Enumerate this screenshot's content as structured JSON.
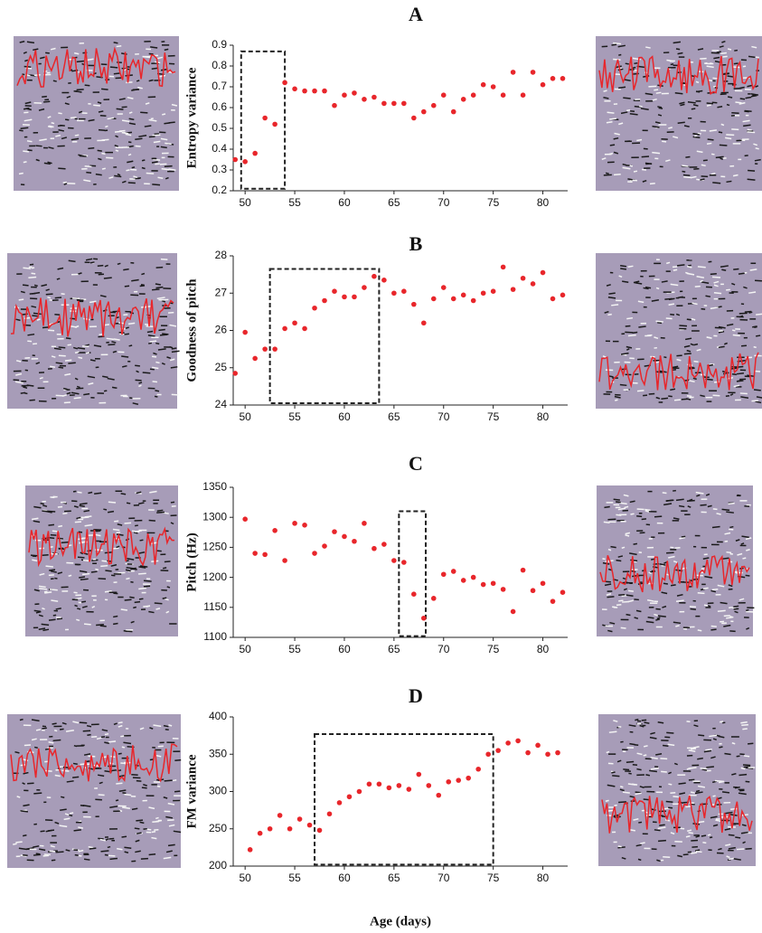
{
  "chart_data": [
    {
      "type": "scatter",
      "title": "A",
      "ylabel": "Entropy variance",
      "color": "#e8262b",
      "x": [
        49,
        50,
        51,
        52,
        53,
        54,
        55,
        56,
        57,
        58,
        59,
        60,
        61,
        62,
        63,
        64,
        65,
        66,
        67,
        68,
        69,
        70,
        71,
        72,
        73,
        74,
        75,
        76,
        77,
        78,
        79,
        80,
        81,
        82
      ],
      "values": [
        0.35,
        0.34,
        0.38,
        0.55,
        0.52,
        0.72,
        0.69,
        0.68,
        0.68,
        0.68,
        0.61,
        0.66,
        0.67,
        0.64,
        0.65,
        0.62,
        0.62,
        0.62,
        0.55,
        0.58,
        0.61,
        0.66,
        0.58,
        0.64,
        0.66,
        0.71,
        0.7,
        0.66,
        0.77,
        0.66,
        0.77,
        0.71,
        0.74,
        0.74
      ],
      "xlim": [
        48.8,
        82.5
      ],
      "ylim": [
        0.2,
        0.9
      ],
      "xticks": [
        50,
        55,
        60,
        65,
        70,
        75,
        80
      ],
      "yticks": [
        0.2,
        0.3,
        0.4,
        0.5,
        0.6,
        0.7,
        0.8,
        0.9
      ],
      "highlight_box": {
        "x": [
          49.6,
          54
        ],
        "y": [
          0.21,
          0.87
        ]
      }
    },
    {
      "type": "scatter",
      "title": "B",
      "ylabel": "Goodness of pitch",
      "color": "#e8262b",
      "x": [
        49,
        50,
        51,
        52,
        53,
        54,
        55,
        56,
        57,
        58,
        59,
        60,
        61,
        62,
        63,
        64,
        65,
        66,
        67,
        68,
        69,
        70,
        71,
        72,
        73,
        74,
        75,
        76,
        77,
        78,
        79,
        80,
        81,
        82
      ],
      "values": [
        24.85,
        25.95,
        25.25,
        25.5,
        25.5,
        26.05,
        26.2,
        26.05,
        26.6,
        26.8,
        27.05,
        26.9,
        26.9,
        27.15,
        27.45,
        27.35,
        27.0,
        27.05,
        26.7,
        26.2,
        26.85,
        27.15,
        26.85,
        26.95,
        26.8,
        27.0,
        27.05,
        27.7,
        27.1,
        27.4,
        27.25,
        27.55,
        26.85,
        26.95
      ],
      "xlim": [
        48.8,
        82.5
      ],
      "ylim": [
        24,
        28
      ],
      "xticks": [
        50,
        55,
        60,
        65,
        70,
        75,
        80
      ],
      "yticks": [
        24,
        25,
        26,
        27,
        28
      ],
      "highlight_box": {
        "x": [
          52.5,
          63.5
        ],
        "y": [
          24.05,
          27.65
        ]
      }
    },
    {
      "type": "scatter",
      "title": "C",
      "ylabel": "Pitch (Hz)",
      "color": "#e8262b",
      "x": [
        50,
        51,
        52,
        53,
        54,
        55,
        56,
        57,
        58,
        59,
        60,
        61,
        62,
        63,
        64,
        65,
        66,
        67,
        68,
        69,
        70,
        71,
        72,
        73,
        74,
        75,
        76,
        77,
        78,
        79,
        80,
        81,
        82
      ],
      "values": [
        1297,
        1240,
        1238,
        1278,
        1228,
        1290,
        1287,
        1240,
        1252,
        1276,
        1268,
        1260,
        1290,
        1248,
        1255,
        1228,
        1225,
        1172,
        1132,
        1165,
        1205,
        1210,
        1195,
        1200,
        1188,
        1190,
        1180,
        1143,
        1212,
        1178,
        1190,
        1160,
        1175
      ],
      "xlim": [
        48.8,
        82.5
      ],
      "ylim": [
        1100,
        1350
      ],
      "xticks": [
        50,
        55,
        60,
        65,
        70,
        75,
        80
      ],
      "yticks": [
        1100,
        1150,
        1200,
        1250,
        1300,
        1350
      ],
      "highlight_box": {
        "x": [
          65.5,
          68.2
        ],
        "y": [
          1102,
          1310
        ]
      }
    },
    {
      "type": "scatter",
      "title": "D",
      "ylabel": "FM  variance",
      "xlabel": "Age (days)",
      "color": "#e8262b",
      "x": [
        50.5,
        51.5,
        52.5,
        53.5,
        54.5,
        55.5,
        56.5,
        57.5,
        58.5,
        59.5,
        60.5,
        61.5,
        62.5,
        63.5,
        64.5,
        65.5,
        66.5,
        67.5,
        68.5,
        69.5,
        70.5,
        71.5,
        72.5,
        73.5,
        74.5,
        75.5,
        76.5,
        77.5,
        78.5,
        79.5,
        80.5,
        81.5
      ],
      "values": [
        222,
        244,
        250,
        268,
        250,
        263,
        255,
        248,
        270,
        285,
        293,
        300,
        310,
        310,
        305,
        308,
        303,
        323,
        308,
        295,
        313,
        315,
        318,
        330,
        350,
        355,
        365,
        368,
        352,
        362,
        350,
        352
      ],
      "xlim": [
        48.8,
        82.5
      ],
      "ylim": [
        200,
        400
      ],
      "xticks": [
        50,
        55,
        60,
        65,
        70,
        75,
        80
      ],
      "yticks": [
        200,
        250,
        300,
        350,
        400
      ],
      "highlight_box": {
        "x": [
          57,
          75
        ],
        "y": [
          202,
          377
        ]
      }
    }
  ]
}
